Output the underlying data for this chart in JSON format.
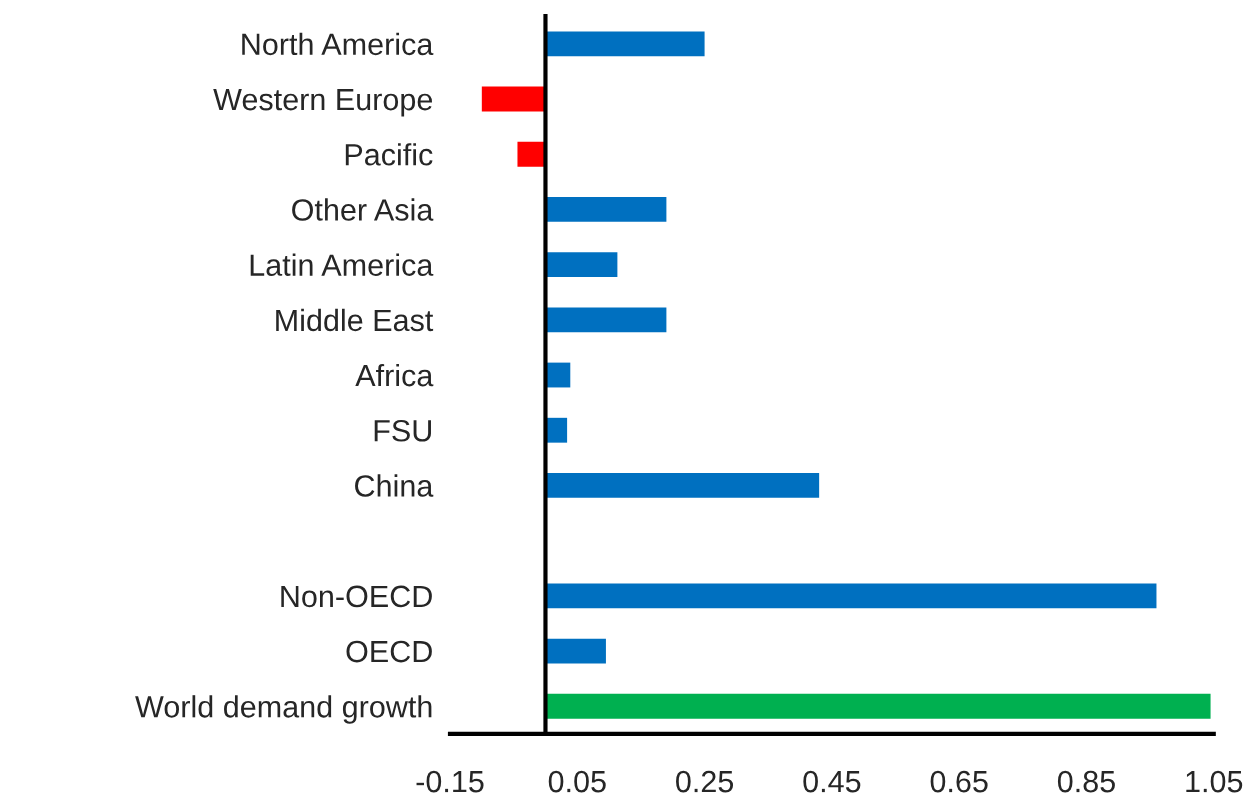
{
  "chart_data": {
    "type": "bar",
    "orientation": "horizontal",
    "categories": [
      "North America",
      "Western Europe",
      "Pacific",
      "Other Asia",
      "Latin America",
      "Middle East",
      "Africa",
      "FSU",
      "China",
      null,
      "Non-OECD",
      "OECD",
      "World demand growth"
    ],
    "values": [
      0.25,
      -0.1,
      -0.044,
      0.19,
      0.113,
      0.19,
      0.039,
      0.034,
      0.43,
      null,
      0.96,
      0.095,
      1.045
    ],
    "colors": [
      "#0070c0",
      "#ff0000",
      "#ff0000",
      "#0070c0",
      "#0070c0",
      "#0070c0",
      "#0070c0",
      "#0070c0",
      "#0070c0",
      "#0070c0",
      "#0070c0",
      "#0070c0",
      "#00b050"
    ],
    "xlim": [
      -0.15,
      1.05
    ],
    "xticks": [
      -0.15,
      0.05,
      0.25,
      0.45,
      0.65,
      0.85,
      1.05
    ],
    "grid": false,
    "legend": false
  }
}
